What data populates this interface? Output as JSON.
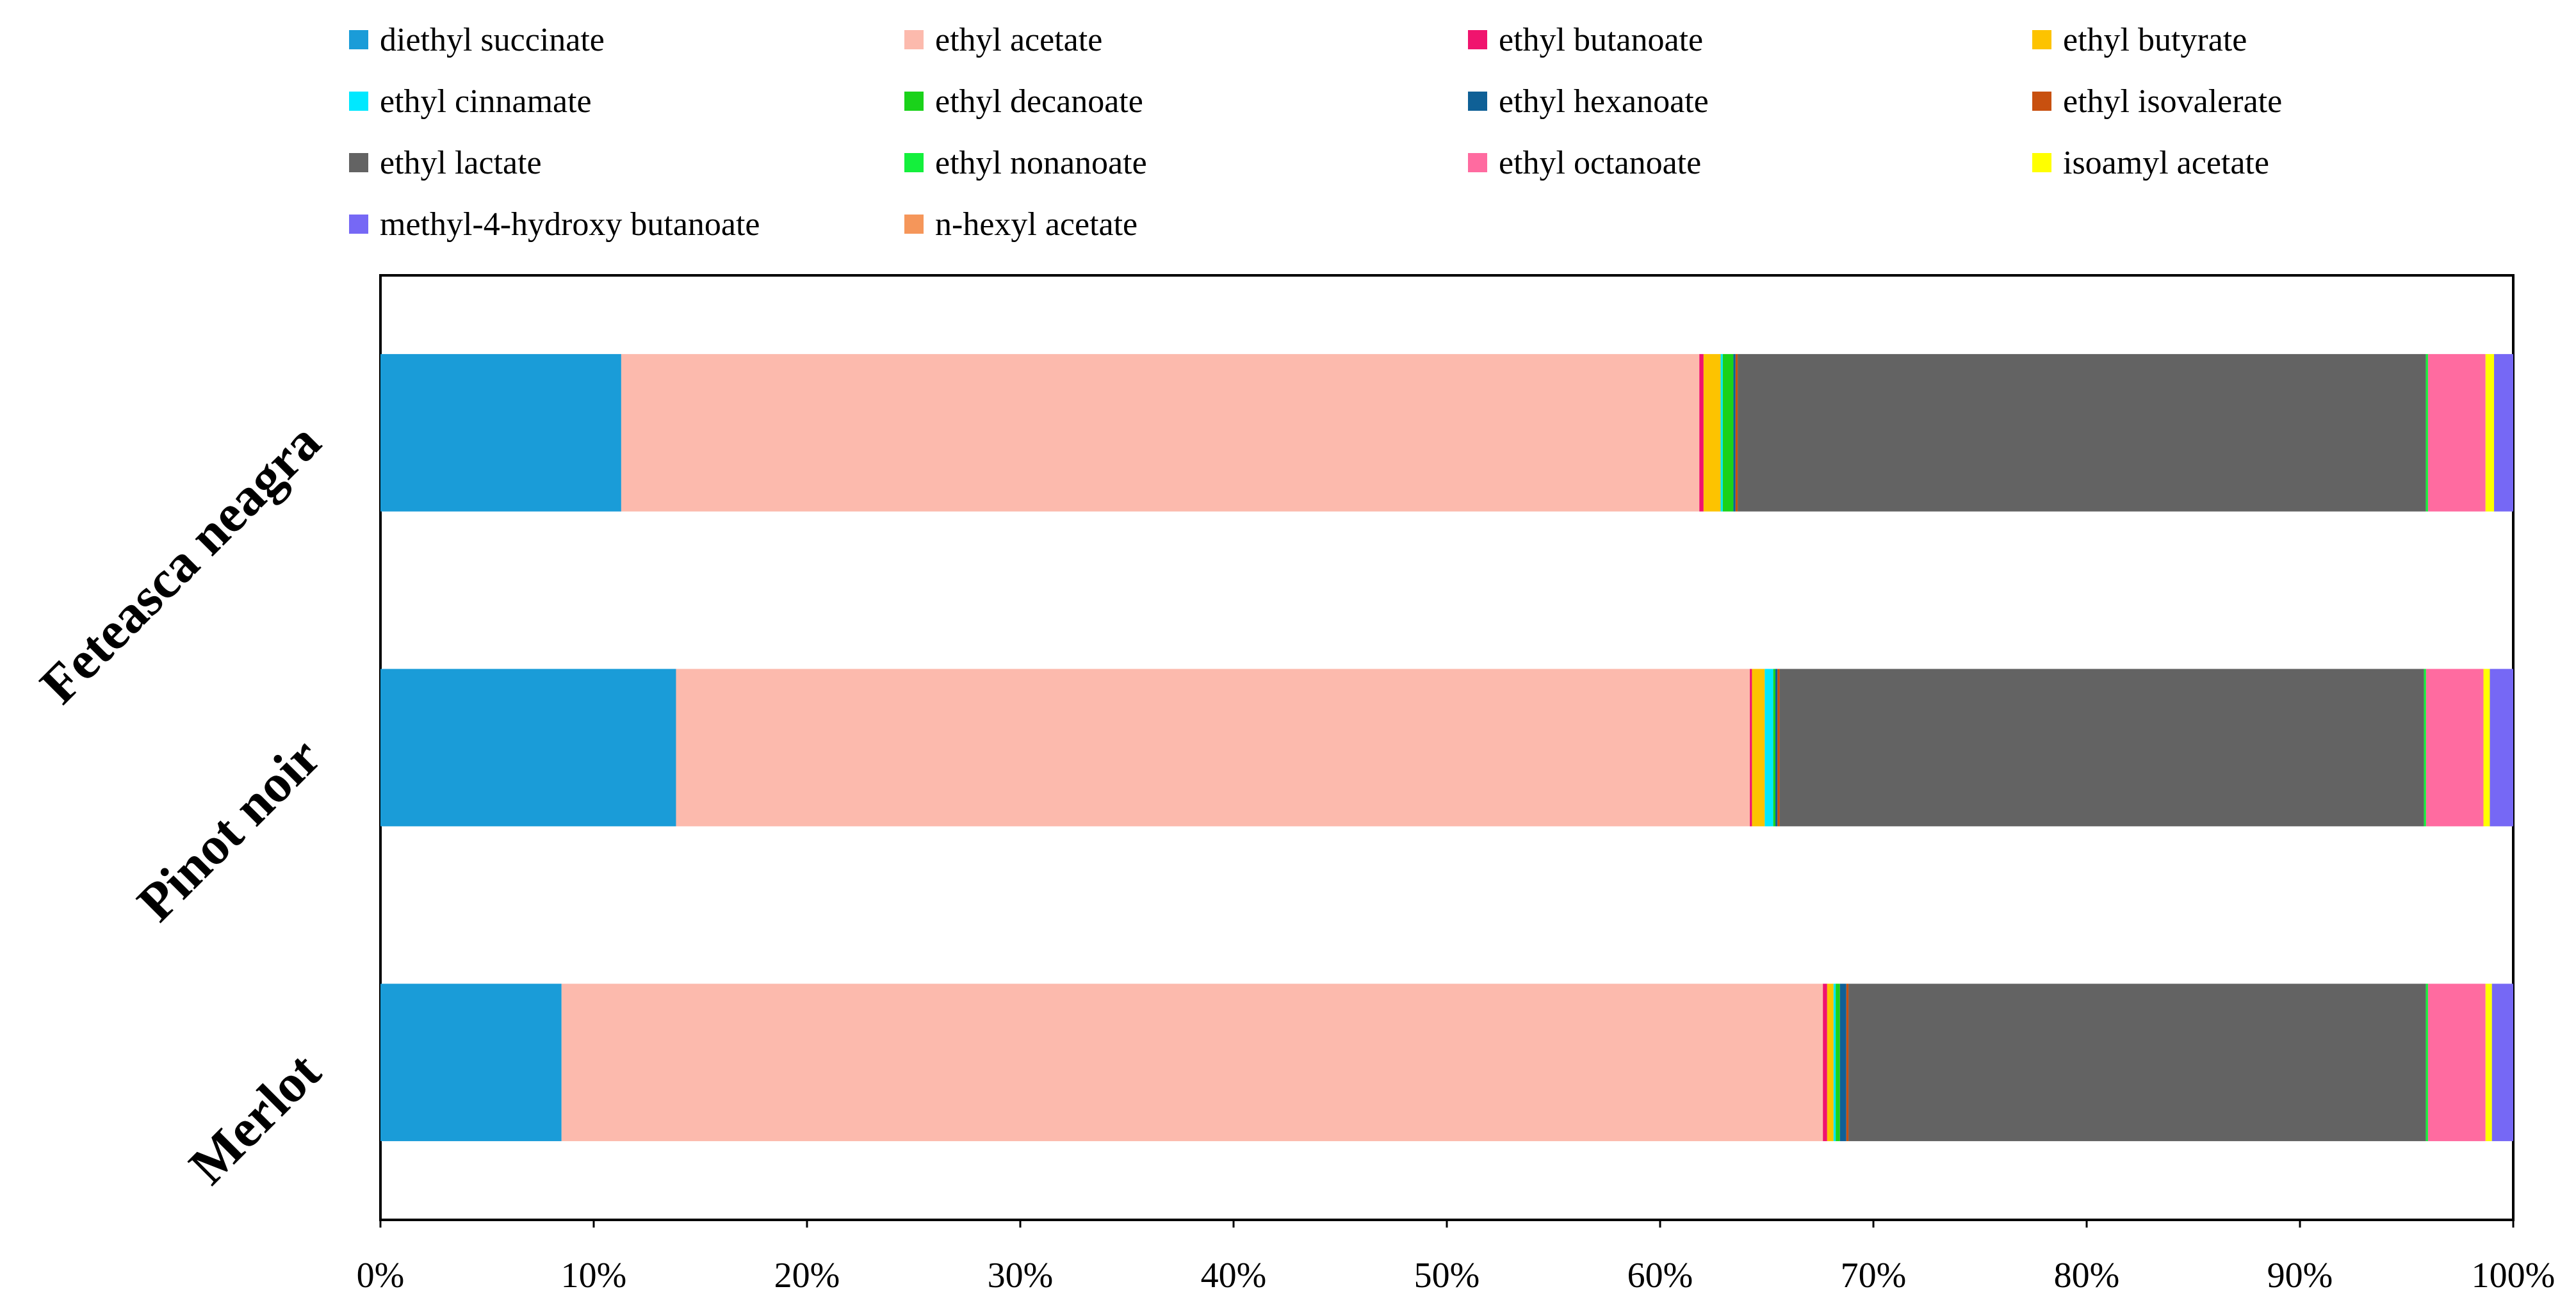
{
  "chart_data": {
    "type": "bar",
    "orientation": "horizontal",
    "stacked": "percent",
    "title": "",
    "xlabel": "",
    "ylabel": "",
    "xlim": [
      0,
      100
    ],
    "x_ticks": [
      "0%",
      "10%",
      "20%",
      "30%",
      "40%",
      "50%",
      "60%",
      "70%",
      "80%",
      "90%",
      "100%"
    ],
    "categories": [
      "Feteasca neagra",
      "Pinot noir",
      "Merlot"
    ],
    "legend_position": "top",
    "grid": false,
    "series": [
      {
        "name": "diethyl succinate",
        "color": "#1a9cd8",
        "values": [
          11.3,
          13.9,
          8.5
        ]
      },
      {
        "name": "ethyl acetate",
        "color": "#fcbaad",
        "values": [
          50.6,
          50.5,
          59.2
        ]
      },
      {
        "name": "ethyl butanoate",
        "color": "#f0146e",
        "values": [
          0.2,
          0.1,
          0.2
        ]
      },
      {
        "name": "ethyl butyrate",
        "color": "#fdc300",
        "values": [
          0.8,
          0.6,
          0.3
        ]
      },
      {
        "name": "ethyl cinnamate",
        "color": "#00e8ff",
        "values": [
          0.1,
          0.4,
          0.1
        ]
      },
      {
        "name": "ethyl decanoate",
        "color": "#1ad21a",
        "values": [
          0.5,
          0.1,
          0.2
        ]
      },
      {
        "name": "ethyl hexanoate",
        "color": "#0f6096",
        "values": [
          0.1,
          0.1,
          0.3
        ]
      },
      {
        "name": "ethyl isovalerate",
        "color": "#c8500f",
        "values": [
          0.1,
          0.1,
          0.1
        ]
      },
      {
        "name": "ethyl lactate",
        "color": "#636363",
        "values": [
          32.3,
          30.3,
          27.1
        ]
      },
      {
        "name": "ethyl nonanoate",
        "color": "#14f03c",
        "values": [
          0.1,
          0.1,
          0.1
        ]
      },
      {
        "name": "ethyl octanoate",
        "color": "#ff6ba0",
        "values": [
          2.7,
          2.7,
          2.7
        ]
      },
      {
        "name": "isoamyl acetate",
        "color": "#ffff00",
        "values": [
          0.4,
          0.3,
          0.3
        ]
      },
      {
        "name": "methyl-4-hydroxy butanoate",
        "color": "#7668f5",
        "values": [
          0.9,
          1.1,
          1.0
        ]
      },
      {
        "name": "n-hexyl acetate",
        "color": "#f5965a",
        "values": [
          0.0,
          0.0,
          0.0
        ]
      }
    ]
  }
}
